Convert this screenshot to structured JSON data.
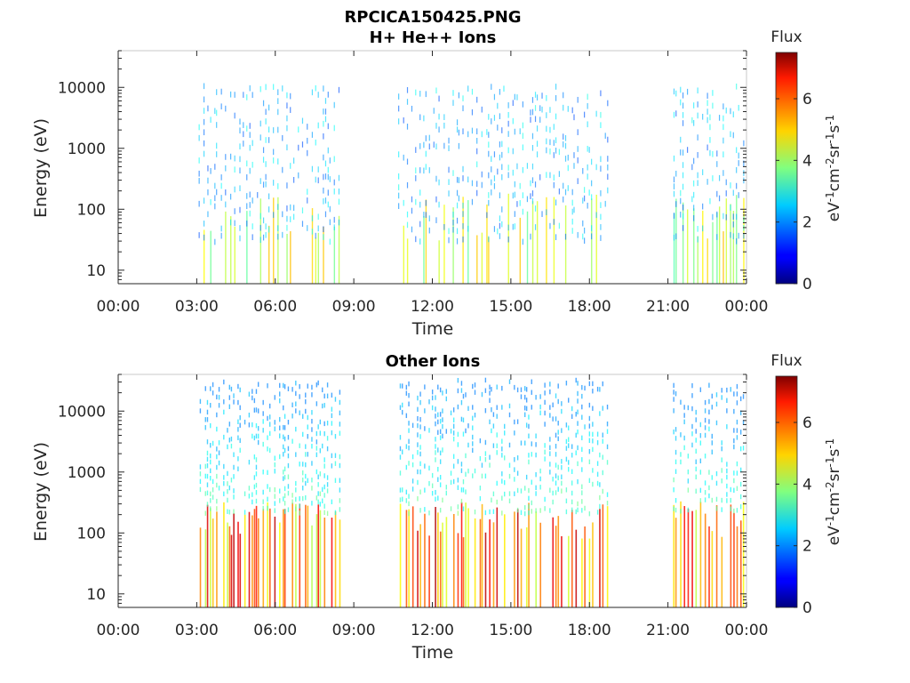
{
  "chart_data": [
    {
      "type": "heatmap",
      "title": "RPCICA150425.PNG",
      "subtitle": "H+ He++ Ions",
      "xlabel": "Time",
      "ylabel": "Energy (eV)",
      "x_range": [
        "00:00",
        "24:00"
      ],
      "x_tick_labels": [
        "00:00",
        "03:00",
        "06:00",
        "09:00",
        "12:00",
        "15:00",
        "18:00",
        "21:00",
        "00:00"
      ],
      "y_scale": "log",
      "y_range": [
        6,
        40000
      ],
      "y_tick_labels": [
        "10",
        "100",
        "1000",
        "10000"
      ],
      "colorbar": {
        "title": "Flux",
        "unit": "eV-1cm-2sr-1s-1",
        "range": [
          0,
          7.5
        ],
        "tick_labels": [
          "0",
          "2",
          "4",
          "6"
        ],
        "colormap": "jet"
      },
      "data_intervals": [
        [
          "03:00",
          "08:30"
        ],
        [
          "10:35",
          "18:50"
        ],
        [
          "21:05",
          "23:55"
        ]
      ]
    },
    {
      "type": "heatmap",
      "title": "Other Ions",
      "xlabel": "Time",
      "ylabel": "Energy (eV)",
      "x_range": [
        "00:00",
        "24:00"
      ],
      "x_tick_labels": [
        "00:00",
        "03:00",
        "06:00",
        "09:00",
        "12:00",
        "15:00",
        "18:00",
        "21:00",
        "00:00"
      ],
      "y_scale": "log",
      "y_range": [
        6,
        40000
      ],
      "y_tick_labels": [
        "10",
        "100",
        "1000",
        "10000"
      ],
      "colorbar": {
        "title": "Flux",
        "unit": "eV-1cm-2sr-1s-1",
        "range": [
          0,
          7.5
        ],
        "tick_labels": [
          "0",
          "2",
          "4",
          "6"
        ],
        "colormap": "jet"
      },
      "data_intervals": [
        [
          "03:00",
          "08:30"
        ],
        [
          "10:35",
          "18:50"
        ],
        [
          "21:05",
          "23:55"
        ]
      ]
    }
  ]
}
